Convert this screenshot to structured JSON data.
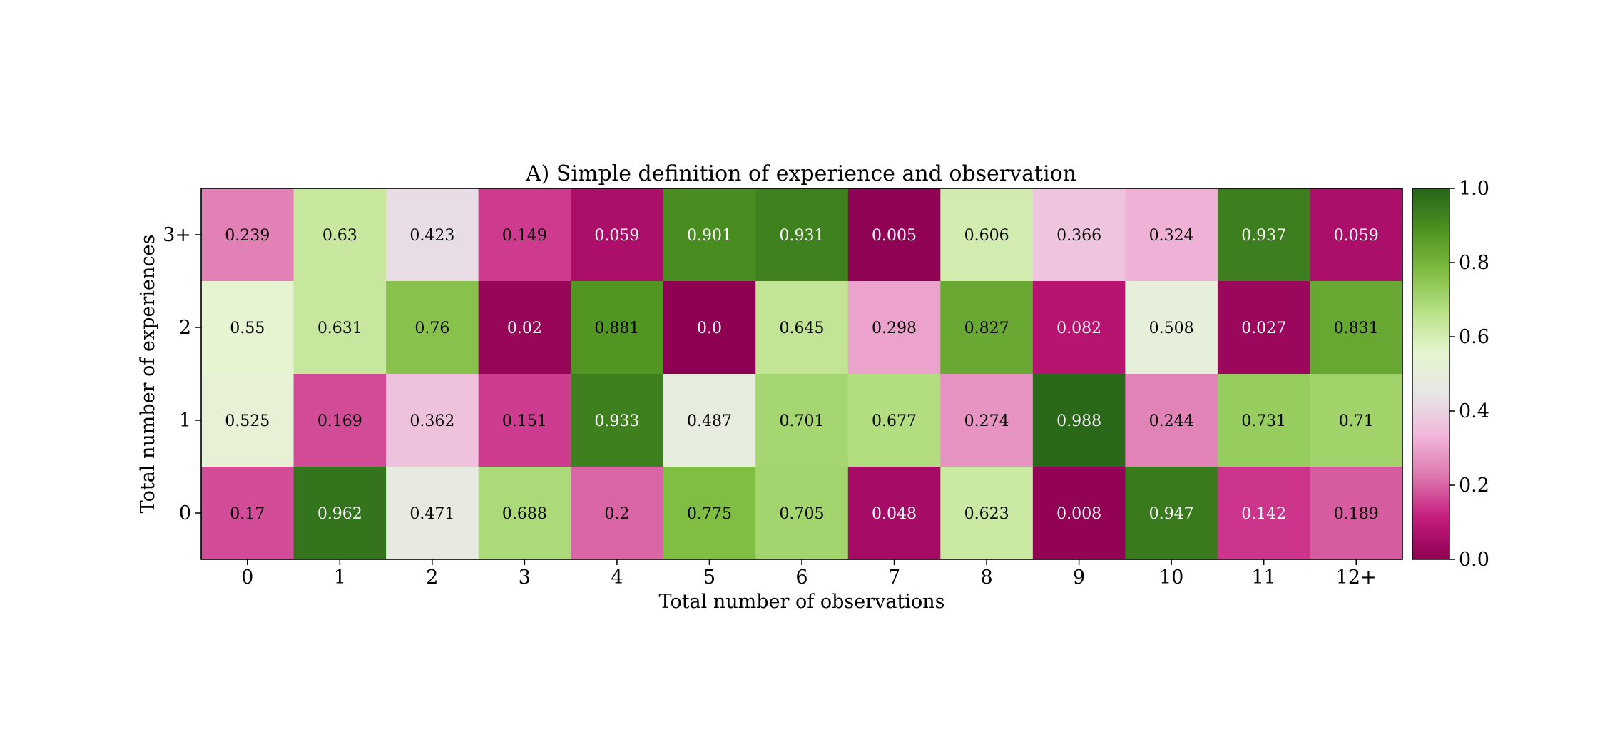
{
  "chart_data": {
    "type": "heatmap",
    "title": "A) Simple definition of experience and observation",
    "xlabel": "Total number of observations",
    "ylabel": "Total number of experiences",
    "x_categories": [
      "0",
      "1",
      "2",
      "3",
      "4",
      "5",
      "6",
      "7",
      "8",
      "9",
      "10",
      "11",
      "12+"
    ],
    "y_categories": [
      "3+",
      "2",
      "1",
      "0"
    ],
    "values": [
      [
        "0.239",
        "0.63",
        "0.423",
        "0.149",
        "0.059",
        "0.901",
        "0.931",
        "0.005",
        "0.606",
        "0.366",
        "0.324",
        "0.937",
        "0.059"
      ],
      [
        "0.55",
        "0.631",
        "0.76",
        "0.02",
        "0.881",
        "0.0",
        "0.645",
        "0.298",
        "0.827",
        "0.082",
        "0.508",
        "0.027",
        "0.831"
      ],
      [
        "0.525",
        "0.169",
        "0.362",
        "0.151",
        "0.933",
        "0.487",
        "0.701",
        "0.677",
        "0.274",
        "0.988",
        "0.244",
        "0.731",
        "0.71"
      ],
      [
        "0.17",
        "0.962",
        "0.471",
        "0.688",
        "0.2",
        "0.775",
        "0.705",
        "0.048",
        "0.623",
        "0.008",
        "0.947",
        "0.142",
        "0.189"
      ]
    ],
    "colorbar": {
      "range": [
        0.0,
        1.0
      ],
      "ticks": [
        "0.0",
        "0.2",
        "0.4",
        "0.6",
        "0.8",
        "1.0"
      ],
      "colormap": "diverging magenta-white-green",
      "colors": [
        "#8e0152",
        "#c51b7d",
        "#de77ae",
        "#f1b6da",
        "#e6e6e6",
        "#e6f5d0",
        "#b8e186",
        "#7fbc41",
        "#4d9221",
        "#276419"
      ]
    },
    "grid": false,
    "cell_labels": true
  }
}
